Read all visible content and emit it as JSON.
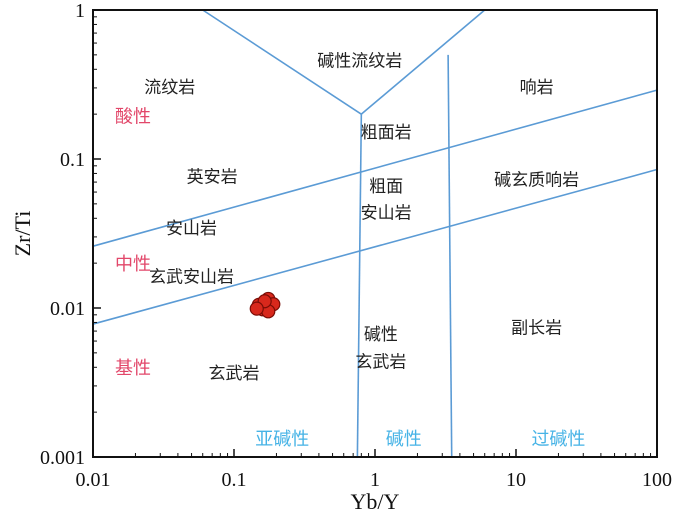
{
  "chart_data": {
    "type": "scatter",
    "xlabel": "Yb/Y",
    "ylabel": "Zr/Ti",
    "x_scale": "log",
    "y_scale": "log",
    "xlim": [
      0.01,
      100
    ],
    "ylim": [
      0.001,
      1
    ],
    "x_ticks": [
      "0.01",
      "0.1",
      "1",
      "10",
      "100"
    ],
    "y_ticks": [
      "0.001",
      "0.01",
      "0.1",
      "1"
    ],
    "grid": false,
    "colors": {
      "boundary": "#5b9bd5",
      "axis": "#111111",
      "acidity": "#e2476a",
      "alkalinity": "#46b3e6",
      "point_fill": "#d8281c",
      "point_stroke": "#7a0d06"
    },
    "boundaries": [
      [
        [
          0.06,
          1
        ],
        [
          0.8,
          0.2
        ]
      ],
      [
        [
          0.8,
          0.2
        ],
        [
          6,
          1
        ]
      ],
      [
        [
          0.8,
          0.2
        ],
        [
          0.75,
          0.001
        ]
      ],
      [
        [
          3.3,
          0.5
        ],
        [
          3.5,
          0.001
        ]
      ],
      [
        [
          0.01,
          0.026
        ],
        [
          100,
          0.29
        ]
      ],
      [
        [
          0.01,
          0.0078
        ],
        [
          100,
          0.085
        ]
      ]
    ],
    "fields": [
      {
        "label": "碱性流纹岩",
        "x": 0.78,
        "y": 0.45
      },
      {
        "label": "流纹岩",
        "x": 0.035,
        "y": 0.3
      },
      {
        "label": "响岩",
        "x": 14,
        "y": 0.3
      },
      {
        "label": "粗面岩",
        "x": 1.2,
        "y": 0.15
      },
      {
        "label": "英安岩",
        "x": 0.07,
        "y": 0.075
      },
      {
        "label": "碱玄质响岩",
        "x": 14,
        "y": 0.072
      },
      {
        "label": "粗面",
        "x": 1.2,
        "y": 0.065
      },
      {
        "label": "安山岩",
        "x": 1.2,
        "y": 0.043
      },
      {
        "label": "安山岩",
        "x": 0.05,
        "y": 0.034
      },
      {
        "label": "玄武安山岩",
        "x": 0.05,
        "y": 0.016
      },
      {
        "label": "碱性",
        "x": 1.1,
        "y": 0.0066
      },
      {
        "label": "玄武岩",
        "x": 1.1,
        "y": 0.0043
      },
      {
        "label": "副长岩",
        "x": 14,
        "y": 0.0073
      },
      {
        "label": "玄武岩",
        "x": 0.1,
        "y": 0.0036
      }
    ],
    "acidity_labels": [
      {
        "label": "酸性",
        "y": 0.19
      },
      {
        "label": "中性",
        "y": 0.0195
      },
      {
        "label": "基性",
        "y": 0.0039
      }
    ],
    "alkalinity_labels": [
      {
        "label": "亚碱性",
        "x": 0.22
      },
      {
        "label": "碱性",
        "x": 1.6
      },
      {
        "label": "过碱性",
        "x": 20
      }
    ],
    "points": [
      {
        "x": 0.15,
        "y": 0.0105
      },
      {
        "x": 0.175,
        "y": 0.0115
      },
      {
        "x": 0.19,
        "y": 0.0106
      },
      {
        "x": 0.16,
        "y": 0.0098
      },
      {
        "x": 0.175,
        "y": 0.0095
      },
      {
        "x": 0.165,
        "y": 0.0111
      },
      {
        "x": 0.145,
        "y": 0.0099
      }
    ]
  }
}
